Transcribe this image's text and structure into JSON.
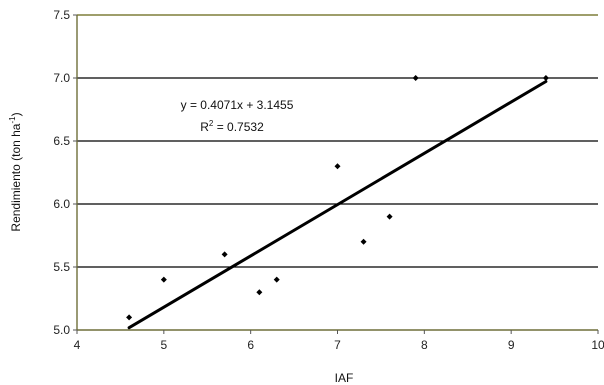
{
  "chart_data": {
    "type": "scatter",
    "title": "",
    "xlabel": "IAF",
    "ylabel": "Rendimiento (ton ha",
    "ylabel_superscript": "-1",
    "ylabel_close": ")",
    "xlim": [
      4,
      10
    ],
    "ylim": [
      5.0,
      7.5
    ],
    "x_ticks": [
      4,
      5,
      6,
      7,
      8,
      9,
      10
    ],
    "x_tick_labels": [
      "4",
      "5",
      "6",
      "7",
      "8",
      "9",
      "10"
    ],
    "y_ticks": [
      5.0,
      5.5,
      6.0,
      6.5,
      7.0,
      7.5
    ],
    "y_tick_labels": [
      "5.0",
      "5.5",
      "6.0",
      "6.5",
      "7.0",
      "7.5"
    ],
    "grid": "horizontal",
    "series": [
      {
        "points": [
          {
            "x": 4.6,
            "y": 5.1
          },
          {
            "x": 5.0,
            "y": 5.4
          },
          {
            "x": 5.7,
            "y": 5.6
          },
          {
            "x": 6.1,
            "y": 5.3
          },
          {
            "x": 6.3,
            "y": 5.4
          },
          {
            "x": 7.0,
            "y": 6.3
          },
          {
            "x": 7.3,
            "y": 5.7
          },
          {
            "x": 7.6,
            "y": 5.9
          },
          {
            "x": 7.9,
            "y": 7.0
          },
          {
            "x": 9.4,
            "y": 7.0
          }
        ],
        "color": "#000000"
      }
    ],
    "trendline": {
      "slope": 0.4071,
      "intercept": 3.1455,
      "x_range": [
        4.6,
        9.4
      ],
      "equation_label": "y = 0.4071x + 3.1455",
      "r2_prefix": "R",
      "r2_superscript": "2",
      "r2_value": " = 0.7532"
    }
  }
}
